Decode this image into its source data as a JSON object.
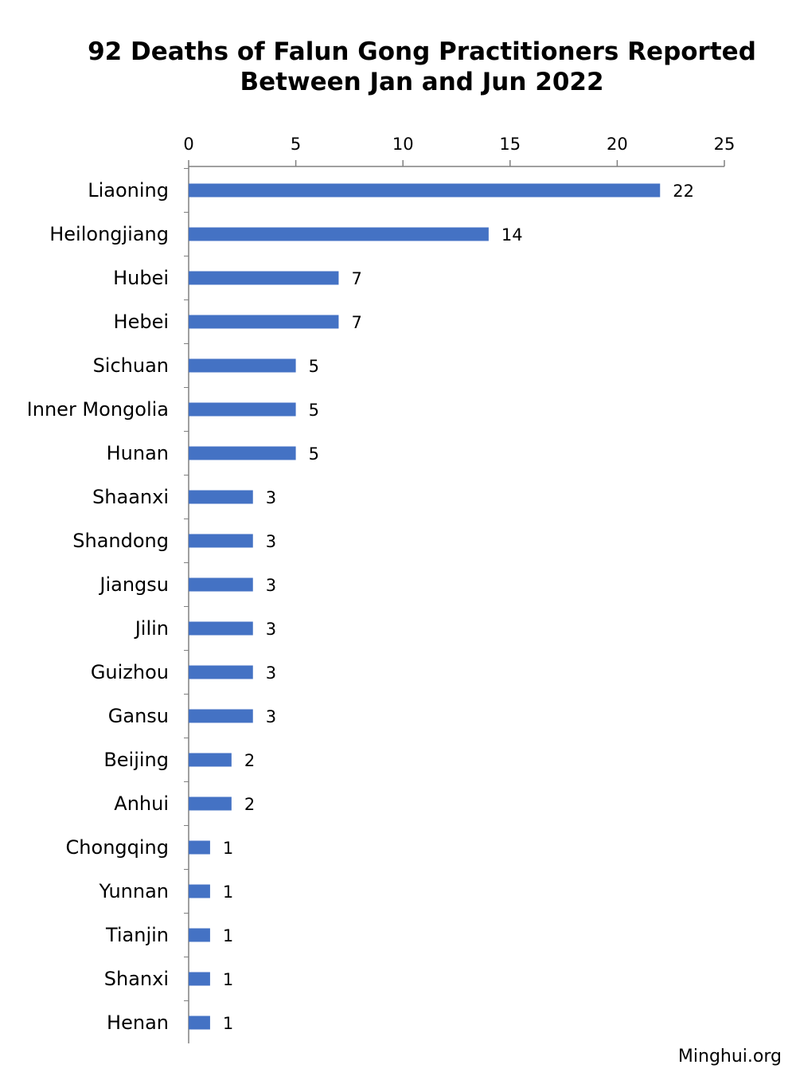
{
  "chart_data": {
    "type": "bar",
    "orientation": "horizontal",
    "title_lines": [
      "92 Deaths of Falun Gong Practitioners Reported",
      "Between Jan and Jun 2022"
    ],
    "categories": [
      "Liaoning",
      "Heilongjiang",
      "Hubei",
      "Hebei",
      "Sichuan",
      "Inner Mongolia",
      "Hunan",
      "Shaanxi",
      "Shandong",
      "Jiangsu",
      "Jilin",
      "Guizhou",
      "Gansu",
      "Beijing",
      "Anhui",
      "Chongqing",
      "Yunnan",
      "Tianjin",
      "Shanxi",
      "Henan"
    ],
    "values": [
      22,
      14,
      7,
      7,
      5,
      5,
      5,
      3,
      3,
      3,
      3,
      3,
      3,
      2,
      2,
      1,
      1,
      1,
      1,
      1
    ],
    "xlim": [
      0,
      25
    ],
    "xticks": [
      0,
      5,
      10,
      15,
      20,
      25
    ],
    "x_axis_position": "top",
    "data_labels": true,
    "grid": false,
    "bar_color": "#4472C4"
  },
  "source": "Minghui.org"
}
